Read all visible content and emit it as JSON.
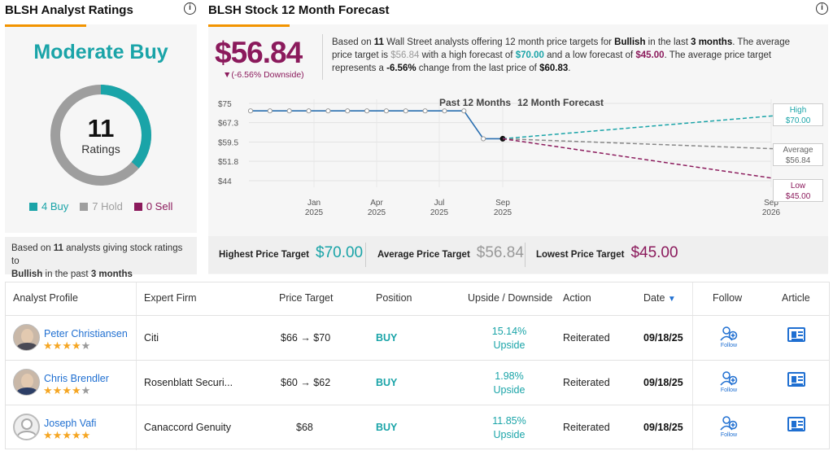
{
  "left_panel": {
    "title": "BLSH Analyst Ratings",
    "consensus": "Moderate Buy",
    "count": "11",
    "count_caption": "Ratings",
    "legend": {
      "buy": "4 Buy",
      "hold": "7 Hold",
      "sell": "0 Sell"
    },
    "breakdown": {
      "buy": 4,
      "hold": 7,
      "sell": 0
    },
    "footer_prefix": "Based on ",
    "footer_count": "11",
    "footer_mid": " analysts giving stock ratings to",
    "footer_name": "Bullish",
    "footer_pre_period": " in the past ",
    "footer_period": "3 months"
  },
  "right_panel": {
    "title": "BLSH Stock 12 Month Forecast",
    "avg_price": "$56.84",
    "avg_downside": "▼(-6.56% Downside)",
    "summary": {
      "t1": "Based on ",
      "count": "11",
      "t2": " Wall Street analysts offering 12 month price targets for ",
      "name": "Bullish",
      "t3": " in the last ",
      "period": "3 months",
      "t4": ". The average price target is ",
      "avg": "$56.84",
      "t5": " with a high forecast of ",
      "high": "$70.00",
      "t6": " and a low forecast of ",
      "low": "$45.00",
      "t7": ". The average price target represents a ",
      "change": "-6.56%",
      "t8": " change from the last price of ",
      "last": "$60.83",
      "t9": "."
    },
    "price_targets": {
      "highest_label": "Highest Price Target",
      "highest_value": "$70.00",
      "average_label": "Average Price Target",
      "average_value": "$56.84",
      "lowest_label": "Lowest Price Target",
      "lowest_value": "$45.00"
    }
  },
  "chart_data": {
    "type": "line",
    "y_ticks": [
      "$75",
      "$67.3",
      "$59.5",
      "$51.8",
      "$44"
    ],
    "y_tick_values": [
      75,
      67.3,
      59.5,
      51.8,
      44
    ],
    "ylim": [
      44,
      75
    ],
    "x_ticks": [
      {
        "month": "Jan",
        "year": "2025"
      },
      {
        "month": "Apr",
        "year": "2025"
      },
      {
        "month": "Jul",
        "year": "2025"
      },
      {
        "month": "Sep",
        "year": "2025"
      },
      {
        "month": "Sep",
        "year": "2026"
      }
    ],
    "section_labels": {
      "past": "Past 12 Months",
      "forecast": "12 Month Forecast"
    },
    "history": [
      72,
      72,
      72,
      72,
      72,
      72,
      72,
      72,
      72,
      72,
      72,
      72,
      60.83,
      60.83
    ],
    "forecasts": {
      "high": {
        "label": "High",
        "value": 70.0,
        "display": "$70.00",
        "color": "#1aa4a8"
      },
      "average": {
        "label": "Average",
        "value": 56.84,
        "display": "$56.84",
        "color": "#888888"
      },
      "low": {
        "label": "Low",
        "value": 45.0,
        "display": "$45.00",
        "color": "#8b1a5c"
      }
    },
    "grid": true
  },
  "table": {
    "headers": {
      "profile": "Analyst Profile",
      "firm": "Expert Firm",
      "target": "Price Target",
      "position": "Position",
      "upside": "Upside / Downside",
      "action": "Action",
      "date": "Date",
      "follow": "Follow",
      "article": "Article"
    },
    "sort_arrow": "▼",
    "follow_text": "Follow",
    "rows": [
      {
        "name": "Peter Christiansen",
        "stars": 4,
        "firm": "Citi",
        "target": "$66 → $70",
        "position": "BUY",
        "pct": "15.14%",
        "dir": "Upside",
        "action": "Reiterated",
        "date": "09/18/25"
      },
      {
        "name": "Chris Brendler",
        "stars": 4,
        "firm": "Rosenblatt Securi...",
        "target": "$60 → $62",
        "position": "BUY",
        "pct": "1.98%",
        "dir": "Upside",
        "action": "Reiterated",
        "date": "09/18/25"
      },
      {
        "name": "Joseph Vafi",
        "stars": 5,
        "firm": "Canaccord Genuity",
        "target": "$68",
        "position": "BUY",
        "pct": "11.85%",
        "dir": "Upside",
        "action": "Reiterated",
        "date": "09/18/25"
      }
    ]
  },
  "colors": {
    "accent": "#f29400",
    "buy": "#1aa4a8",
    "hold": "#9e9e9e",
    "sell": "#8b1a5c",
    "link": "#1f6fd1"
  }
}
